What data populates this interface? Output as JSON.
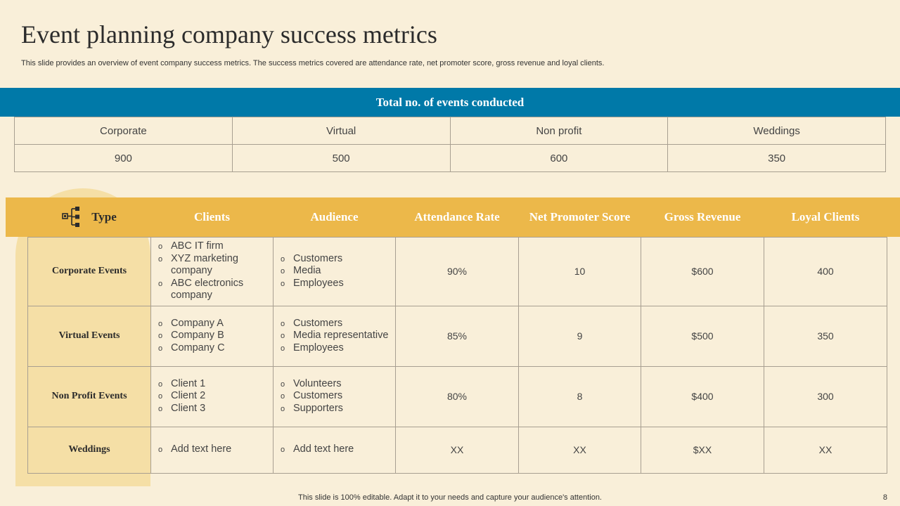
{
  "slide": {
    "title": "Event planning company success metrics",
    "subtitle": "This slide provides an overview of event company success metrics. The success metrics covered are attendance rate, net promoter score, gross revenue and loyal clients.",
    "footer": "This slide is 100% editable. Adapt it to your needs and capture your audience's attention.",
    "page_number": "8"
  },
  "events_summary": {
    "banner": "Total no. of events conducted",
    "headers": [
      "Corporate",
      "Virtual",
      "Non profit",
      "Weddings"
    ],
    "values": [
      "900",
      "500",
      "600",
      "350"
    ]
  },
  "metrics": {
    "headers": {
      "type": "Type",
      "clients": "Clients",
      "audience": "Audience",
      "attendance": "Attendance Rate",
      "nps": "Net Promoter Score",
      "revenue": "Gross Revenue",
      "loyal": "Loyal Clients"
    },
    "rows": [
      {
        "type": "Corporate Events",
        "clients": [
          "ABC IT firm",
          "XYZ marketing company",
          "ABC electronics company"
        ],
        "audience": [
          "Customers",
          "Media",
          "Employees"
        ],
        "attendance": "90%",
        "nps": "10",
        "revenue": "$600",
        "loyal": "400"
      },
      {
        "type": "Virtual Events",
        "clients": [
          "Company A",
          "Company B",
          "Company C"
        ],
        "audience": [
          "Customers",
          "Media representative",
          "Employees"
        ],
        "attendance": "85%",
        "nps": "9",
        "revenue": "$500",
        "loyal": "350"
      },
      {
        "type": "Non Profit Events",
        "clients": [
          "Client 1",
          "Client 2",
          "Client 3"
        ],
        "audience": [
          "Volunteers",
          "Customers",
          "Supporters"
        ],
        "attendance": "80%",
        "nps": "8",
        "revenue": "$400",
        "loyal": "300"
      },
      {
        "type": "Weddings",
        "clients": [
          "Add text here"
        ],
        "audience": [
          "Add text here"
        ],
        "attendance": "XX",
        "nps": "XX",
        "revenue": "$XX",
        "loyal": "XX"
      }
    ]
  },
  "icons": {
    "type_header": "hierarchy-icon"
  },
  "colors": {
    "banner": "#0079a8",
    "header_bar": "#ecb84a",
    "arch": "#f5dfa6",
    "background": "#f9efd9"
  }
}
